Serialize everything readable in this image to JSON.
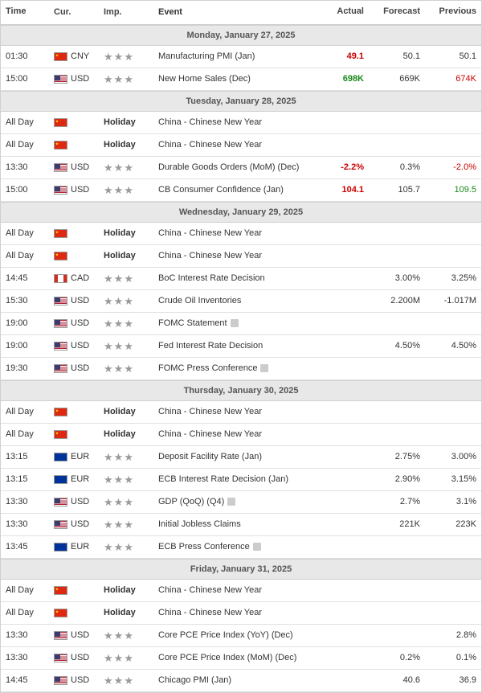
{
  "headers": {
    "time": "Time",
    "cur": "Cur.",
    "imp": "Imp.",
    "event": "Event",
    "actual": "Actual",
    "forecast": "Forecast",
    "previous": "Previous"
  },
  "days": [
    {
      "label": "Monday, January 27, 2025",
      "events": [
        {
          "time": "01:30",
          "flag": "cn",
          "cur": "CNY",
          "imp": 3,
          "holiday": false,
          "event": "Manufacturing PMI (Jan)",
          "actual": "49.1",
          "actual_color": "red",
          "forecast": "50.1",
          "previous": "50.1",
          "previous_color": ""
        },
        {
          "time": "15:00",
          "flag": "us",
          "cur": "USD",
          "imp": 3,
          "holiday": false,
          "event": "New Home Sales (Dec)",
          "actual": "698K",
          "actual_color": "green",
          "forecast": "669K",
          "previous": "674K",
          "previous_color": "red"
        }
      ]
    },
    {
      "label": "Tuesday, January 28, 2025",
      "events": [
        {
          "time": "All Day",
          "flag": "cn",
          "cur": "",
          "imp": 0,
          "holiday": true,
          "event": "China - Chinese New Year",
          "actual": "",
          "actual_color": "",
          "forecast": "",
          "previous": "",
          "previous_color": ""
        },
        {
          "time": "All Day",
          "flag": "cn",
          "cur": "",
          "imp": 0,
          "holiday": true,
          "event": "China - Chinese New Year",
          "actual": "",
          "actual_color": "",
          "forecast": "",
          "previous": "",
          "previous_color": ""
        },
        {
          "time": "13:30",
          "flag": "us",
          "cur": "USD",
          "imp": 3,
          "holiday": false,
          "event": "Durable Goods Orders (MoM) (Dec)",
          "actual": "-2.2%",
          "actual_color": "red",
          "forecast": "0.3%",
          "previous": "-2.0%",
          "previous_color": "red"
        },
        {
          "time": "15:00",
          "flag": "us",
          "cur": "USD",
          "imp": 3,
          "holiday": false,
          "event": "CB Consumer Confidence (Jan)",
          "actual": "104.1",
          "actual_color": "red",
          "forecast": "105.7",
          "previous": "109.5",
          "previous_color": "green"
        }
      ]
    },
    {
      "label": "Wednesday, January 29, 2025",
      "events": [
        {
          "time": "All Day",
          "flag": "cn",
          "cur": "",
          "imp": 0,
          "holiday": true,
          "event": "China - Chinese New Year",
          "actual": "",
          "actual_color": "",
          "forecast": "",
          "previous": "",
          "previous_color": ""
        },
        {
          "time": "All Day",
          "flag": "cn",
          "cur": "",
          "imp": 0,
          "holiday": true,
          "event": "China - Chinese New Year",
          "actual": "",
          "actual_color": "",
          "forecast": "",
          "previous": "",
          "previous_color": ""
        },
        {
          "time": "14:45",
          "flag": "ca",
          "cur": "CAD",
          "imp": 3,
          "holiday": false,
          "event": "BoC Interest Rate Decision",
          "actual": "",
          "actual_color": "",
          "forecast": "3.00%",
          "previous": "3.25%",
          "previous_color": ""
        },
        {
          "time": "15:30",
          "flag": "us",
          "cur": "USD",
          "imp": 3,
          "holiday": false,
          "event": "Crude Oil Inventories",
          "actual": "",
          "actual_color": "",
          "forecast": "2.200M",
          "previous": "-1.017M",
          "previous_color": ""
        },
        {
          "time": "19:00",
          "flag": "us",
          "cur": "USD",
          "imp": 3,
          "holiday": false,
          "event": "FOMC Statement",
          "icon": true,
          "actual": "",
          "actual_color": "",
          "forecast": "",
          "previous": "",
          "previous_color": ""
        },
        {
          "time": "19:00",
          "flag": "us",
          "cur": "USD",
          "imp": 3,
          "holiday": false,
          "event": "Fed Interest Rate Decision",
          "actual": "",
          "actual_color": "",
          "forecast": "4.50%",
          "previous": "4.50%",
          "previous_color": ""
        },
        {
          "time": "19:30",
          "flag": "us",
          "cur": "USD",
          "imp": 3,
          "holiday": false,
          "event": "FOMC Press Conference",
          "icon": true,
          "actual": "",
          "actual_color": "",
          "forecast": "",
          "previous": "",
          "previous_color": ""
        }
      ]
    },
    {
      "label": "Thursday, January 30, 2025",
      "events": [
        {
          "time": "All Day",
          "flag": "cn",
          "cur": "",
          "imp": 0,
          "holiday": true,
          "event": "China - Chinese New Year",
          "actual": "",
          "actual_color": "",
          "forecast": "",
          "previous": "",
          "previous_color": ""
        },
        {
          "time": "All Day",
          "flag": "cn",
          "cur": "",
          "imp": 0,
          "holiday": true,
          "event": "China - Chinese New Year",
          "actual": "",
          "actual_color": "",
          "forecast": "",
          "previous": "",
          "previous_color": ""
        },
        {
          "time": "13:15",
          "flag": "eu",
          "cur": "EUR",
          "imp": 3,
          "holiday": false,
          "event": "Deposit Facility Rate (Jan)",
          "actual": "",
          "actual_color": "",
          "forecast": "2.75%",
          "previous": "3.00%",
          "previous_color": ""
        },
        {
          "time": "13:15",
          "flag": "eu",
          "cur": "EUR",
          "imp": 3,
          "holiday": false,
          "event": "ECB Interest Rate Decision (Jan)",
          "actual": "",
          "actual_color": "",
          "forecast": "2.90%",
          "previous": "3.15%",
          "previous_color": ""
        },
        {
          "time": "13:30",
          "flag": "us",
          "cur": "USD",
          "imp": 3,
          "holiday": false,
          "event": "GDP (QoQ) (Q4)",
          "icon": true,
          "actual": "",
          "actual_color": "",
          "forecast": "2.7%",
          "previous": "3.1%",
          "previous_color": ""
        },
        {
          "time": "13:30",
          "flag": "us",
          "cur": "USD",
          "imp": 3,
          "holiday": false,
          "event": "Initial Jobless Claims",
          "actual": "",
          "actual_color": "",
          "forecast": "221K",
          "previous": "223K",
          "previous_color": ""
        },
        {
          "time": "13:45",
          "flag": "eu",
          "cur": "EUR",
          "imp": 3,
          "holiday": false,
          "event": "ECB Press Conference",
          "icon": true,
          "actual": "",
          "actual_color": "",
          "forecast": "",
          "previous": "",
          "previous_color": ""
        }
      ]
    },
    {
      "label": "Friday, January 31, 2025",
      "events": [
        {
          "time": "All Day",
          "flag": "cn",
          "cur": "",
          "imp": 0,
          "holiday": true,
          "event": "China - Chinese New Year",
          "actual": "",
          "actual_color": "",
          "forecast": "",
          "previous": "",
          "previous_color": ""
        },
        {
          "time": "All Day",
          "flag": "cn",
          "cur": "",
          "imp": 0,
          "holiday": true,
          "event": "China - Chinese New Year",
          "actual": "",
          "actual_color": "",
          "forecast": "",
          "previous": "",
          "previous_color": ""
        },
        {
          "time": "13:30",
          "flag": "us",
          "cur": "USD",
          "imp": 3,
          "holiday": false,
          "event": "Core PCE Price Index (YoY) (Dec)",
          "actual": "",
          "actual_color": "",
          "forecast": "",
          "previous": "2.8%",
          "previous_color": ""
        },
        {
          "time": "13:30",
          "flag": "us",
          "cur": "USD",
          "imp": 3,
          "holiday": false,
          "event": "Core PCE Price Index (MoM) (Dec)",
          "actual": "",
          "actual_color": "",
          "forecast": "0.2%",
          "previous": "0.1%",
          "previous_color": ""
        },
        {
          "time": "14:45",
          "flag": "us",
          "cur": "USD",
          "imp": 3,
          "holiday": false,
          "event": "Chicago PMI (Jan)",
          "actual": "",
          "actual_color": "",
          "forecast": "40.6",
          "previous": "36.9",
          "previous_color": ""
        }
      ]
    }
  ],
  "holiday_label": "Holiday"
}
